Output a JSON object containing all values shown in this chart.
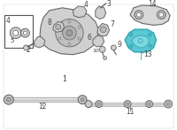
{
  "background_color": "#ffffff",
  "part_color": "#d0d0d0",
  "line_color": "#aaaaaa",
  "edge_color": "#888888",
  "dark_line": "#666666",
  "label_color": "#444444",
  "highlight_fill": "#5bc8d4",
  "highlight_edge": "#3aabb8",
  "box_edge": "#555555",
  "fig_width": 2.0,
  "fig_height": 1.47,
  "dpi": 100
}
